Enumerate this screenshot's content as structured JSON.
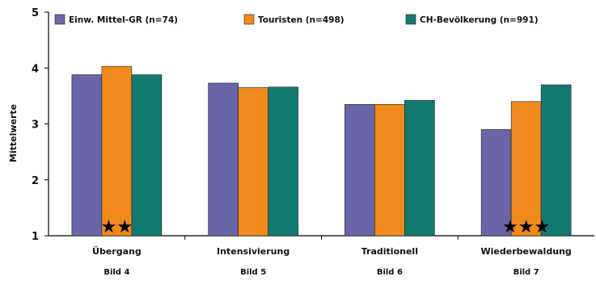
{
  "chart_data": {
    "type": "bar",
    "ylabel": "Mittelwerte",
    "ylim": [
      1,
      5
    ],
    "yticks": [
      "1",
      "2",
      "3",
      "4",
      "5"
    ],
    "grid": false,
    "legend_position": "top",
    "categories": [
      "Übergang",
      "Intensivierung",
      "Traditionell",
      "Wiederbewaldung"
    ],
    "sublabels": [
      "Bild 4",
      "Bild 5",
      "Bild 6",
      "Bild 7"
    ],
    "series": [
      {
        "name": "Einw. Mittel-GR (n=74)",
        "color": "#6a64a8",
        "values": [
          3.88,
          3.73,
          3.35,
          2.9
        ]
      },
      {
        "name": "Touristen (n=498)",
        "color": "#f08a1e",
        "values": [
          4.03,
          3.65,
          3.35,
          3.4
        ]
      },
      {
        "name": "CH-Bevölkerung (n=991)",
        "color": "#137a70",
        "values": [
          3.88,
          3.66,
          3.42,
          3.7
        ]
      }
    ],
    "significance": [
      "★★",
      "",
      "",
      "★★★"
    ]
  }
}
